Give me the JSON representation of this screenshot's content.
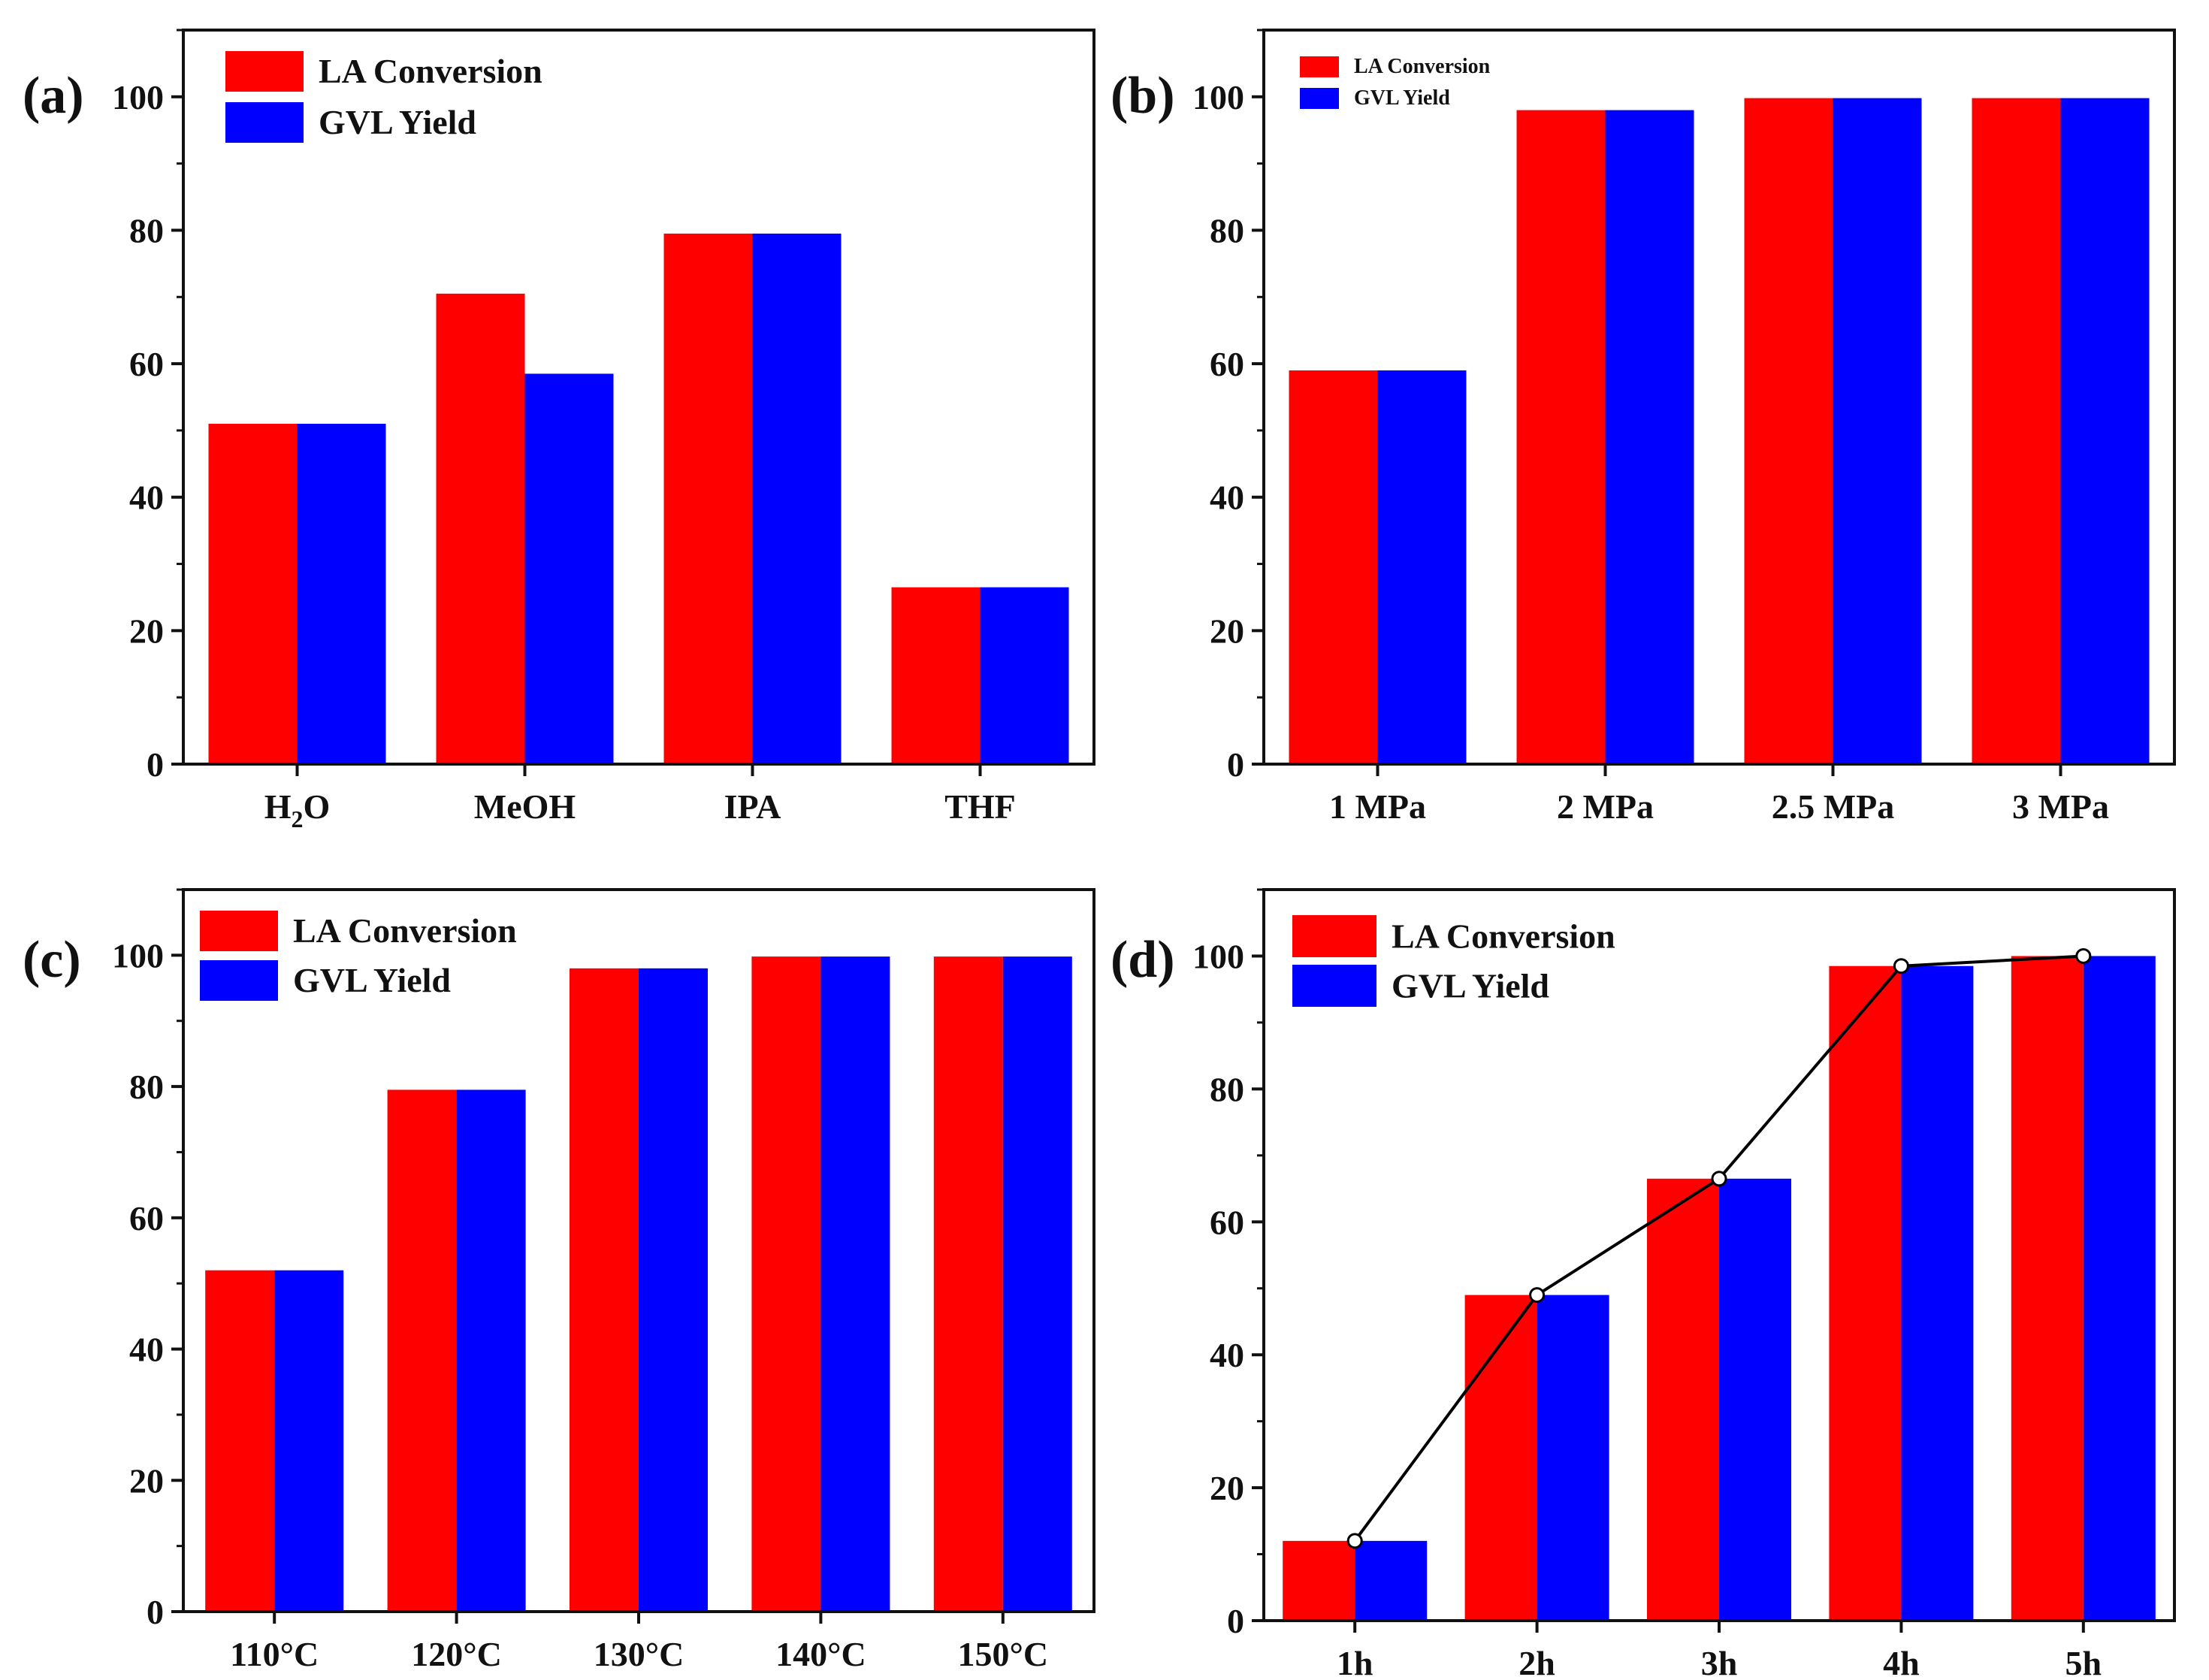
{
  "colors": {
    "la_conversion": "#ff0000",
    "gvl_yield": "#0000ff",
    "axis": "#111111",
    "trend_line": "#000000"
  },
  "chart_data": [
    {
      "panel": "(a)",
      "type": "bar",
      "categories": [
        "H2O",
        "MeOH",
        "IPA",
        "THF"
      ],
      "series": [
        {
          "name": "LA Conversion",
          "values": [
            51,
            70.5,
            79.5,
            26.5
          ]
        },
        {
          "name": "GVL Yield",
          "values": [
            51,
            58.5,
            79.5,
            26.5
          ]
        }
      ],
      "ylim": [
        0,
        110
      ],
      "yticks": [
        0,
        20,
        40,
        60,
        80,
        100
      ],
      "legend": "top-left"
    },
    {
      "panel": "(b)",
      "type": "bar",
      "categories": [
        "1 MPa",
        "2 MPa",
        "2.5 MPa",
        "3 MPa"
      ],
      "series": [
        {
          "name": "LA Conversion",
          "values": [
            59,
            98,
            99.8,
            99.8
          ]
        },
        {
          "name": "GVL Yield",
          "values": [
            59,
            98,
            99.8,
            99.8
          ]
        }
      ],
      "ylim": [
        0,
        110
      ],
      "yticks": [
        0,
        20,
        40,
        60,
        80,
        100
      ],
      "legend": "top-left"
    },
    {
      "panel": "(c)",
      "type": "bar",
      "categories": [
        "110°C",
        "120°C",
        "130°C",
        "140°C",
        "150°C"
      ],
      "series": [
        {
          "name": "LA Conversion",
          "values": [
            52,
            79.5,
            98,
            99.8,
            99.8
          ]
        },
        {
          "name": "GVL Yield",
          "values": [
            52,
            79.5,
            98,
            99.8,
            99.8
          ]
        }
      ],
      "ylim": [
        0,
        110
      ],
      "yticks": [
        0,
        20,
        40,
        60,
        80,
        100
      ],
      "legend": "top-left"
    },
    {
      "panel": "(d)",
      "type": "bar",
      "categories": [
        "1h",
        "2h",
        "3h",
        "4h",
        "5h"
      ],
      "series": [
        {
          "name": "LA Conversion",
          "values": [
            12,
            49,
            66.5,
            98.5,
            100
          ]
        },
        {
          "name": "GVL Yield",
          "values": [
            12,
            49,
            66.5,
            98.5,
            100
          ]
        }
      ],
      "trend_line": [
        12,
        49,
        66.5,
        98.5,
        100
      ],
      "ylim": [
        0,
        110
      ],
      "yticks": [
        0,
        20,
        40,
        60,
        80,
        100
      ],
      "legend": "top-left"
    }
  ]
}
